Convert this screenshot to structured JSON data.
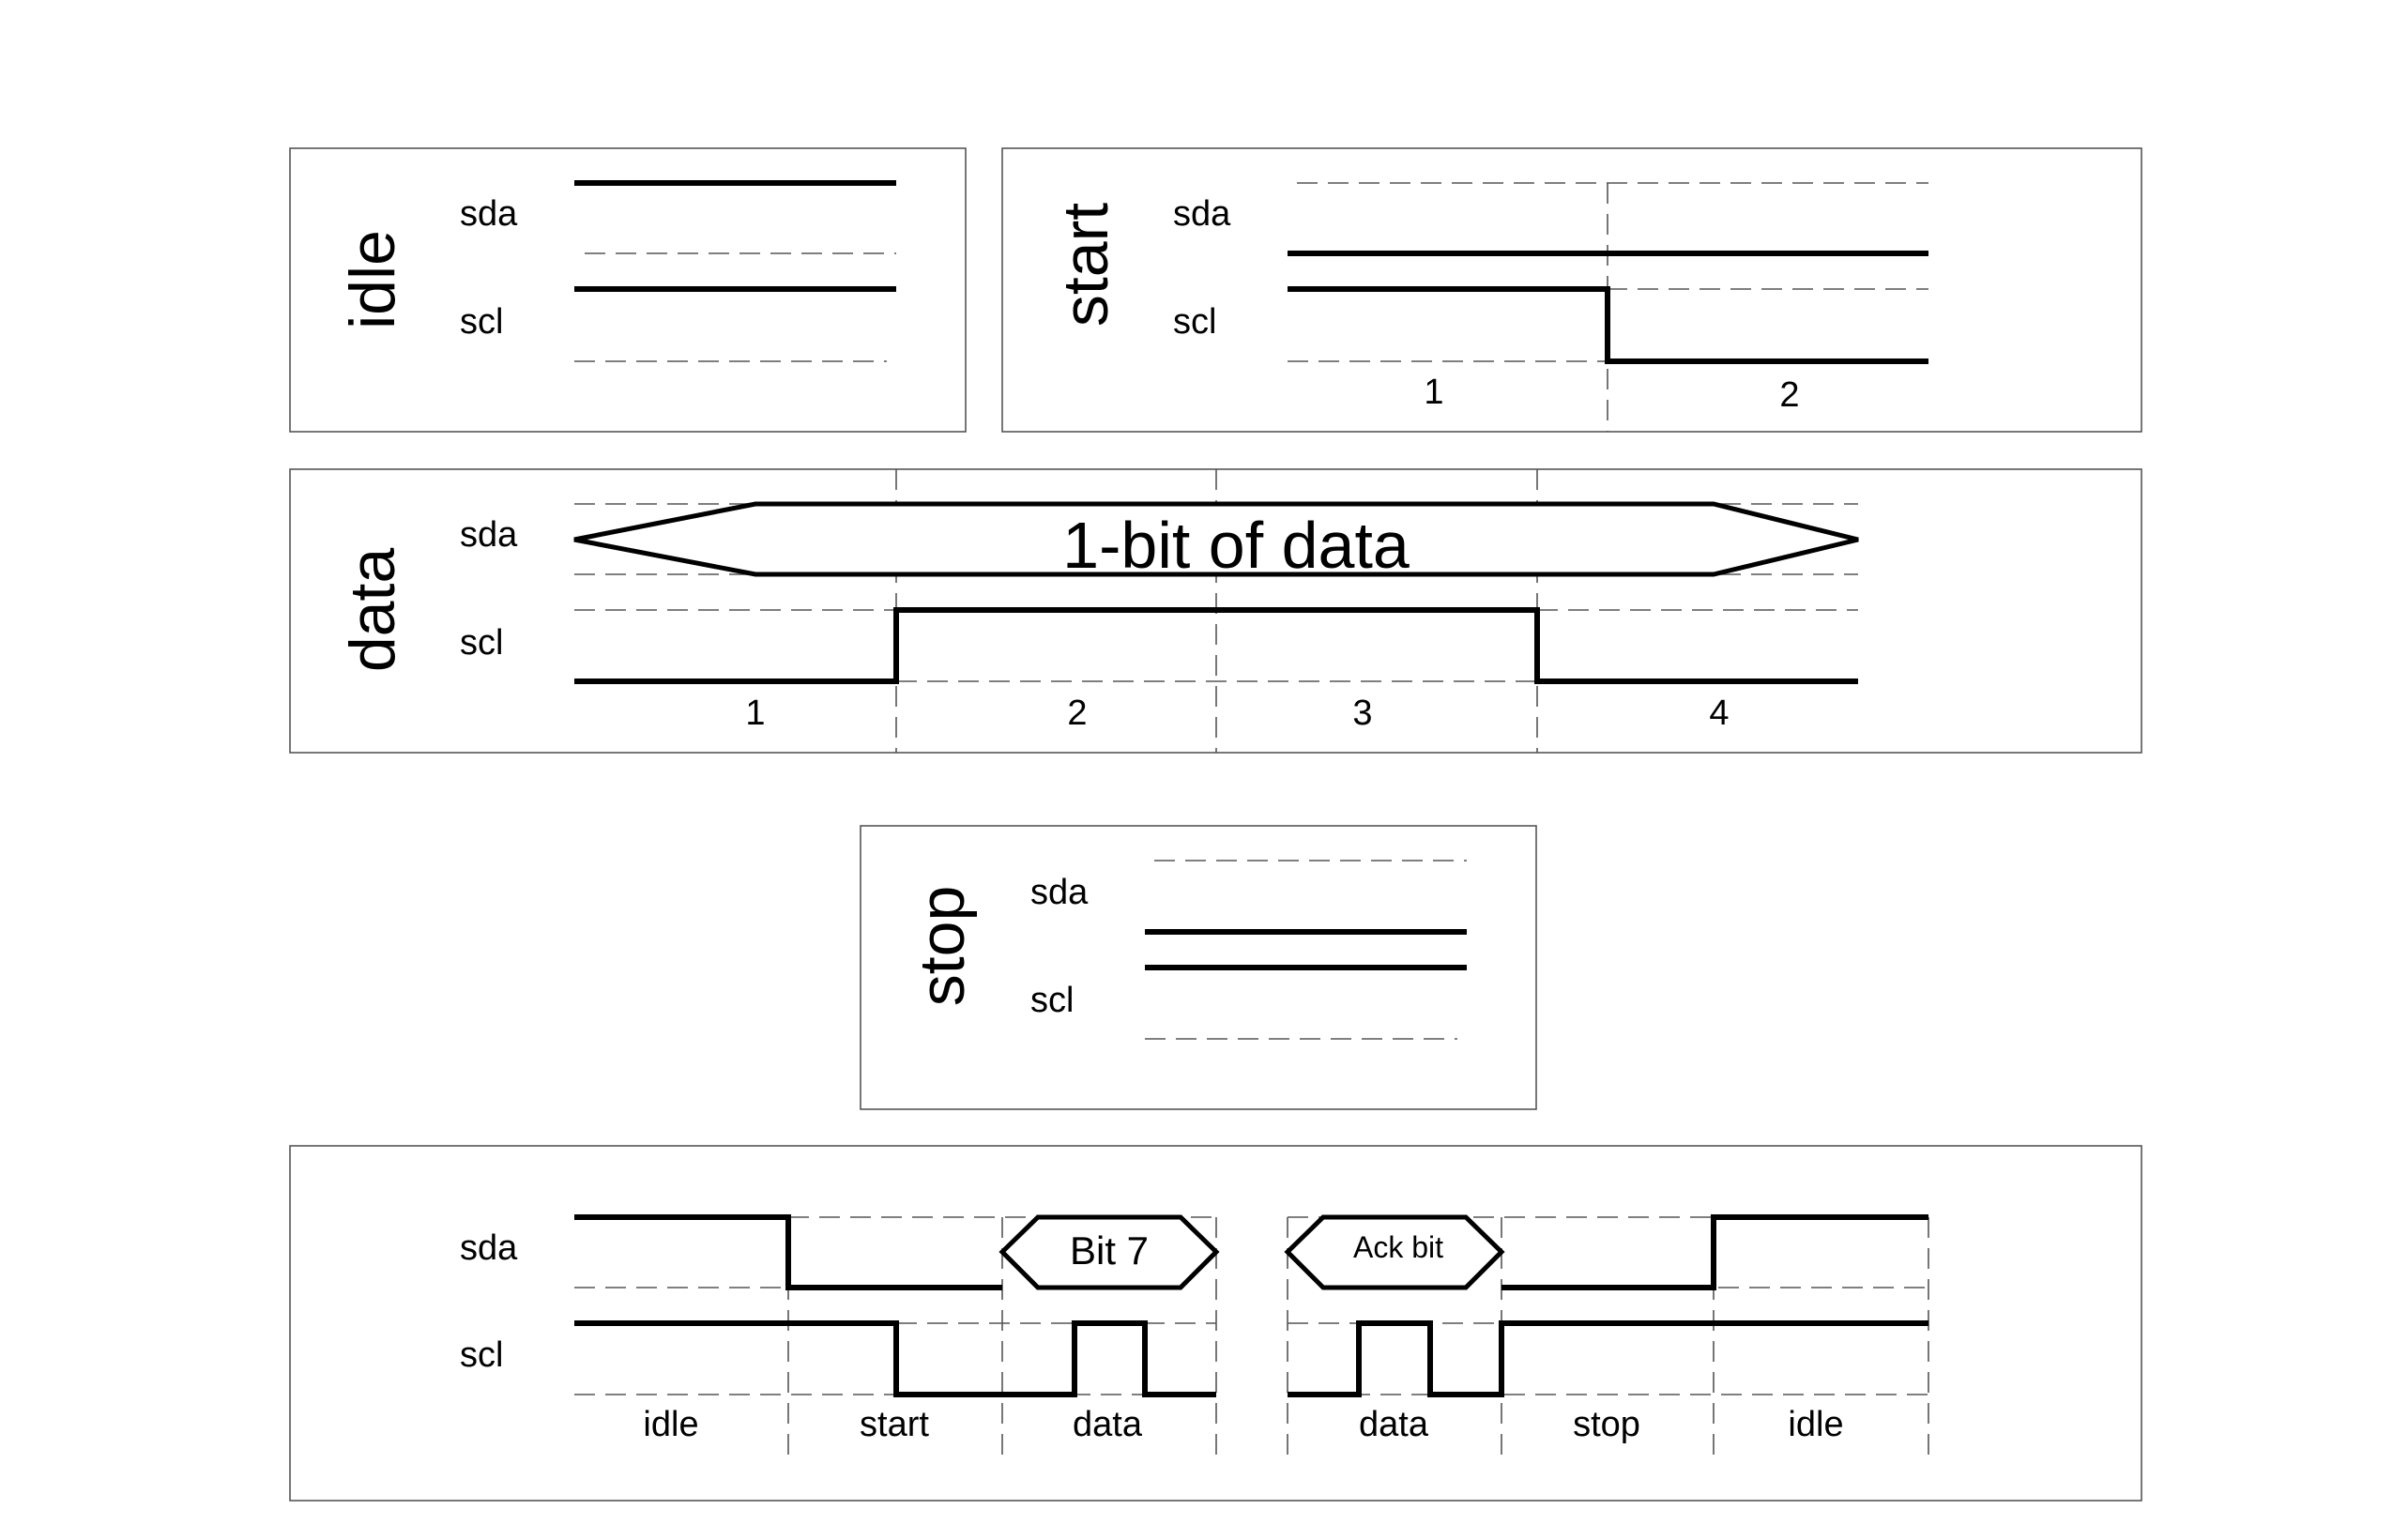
{
  "idle_panel": {
    "title": "idle",
    "sda_label": "sda",
    "scl_label": "scl"
  },
  "start_panel": {
    "title": "start",
    "sda_label": "sda",
    "scl_label": "scl",
    "phases": [
      "1",
      "2"
    ]
  },
  "data_panel": {
    "title": "data",
    "sda_label": "sda",
    "scl_label": "scl",
    "bus_label": "1-bit of data",
    "phases": [
      "1",
      "2",
      "3",
      "4"
    ]
  },
  "stop_panel": {
    "title": "stop",
    "sda_label": "sda",
    "scl_label": "scl"
  },
  "sequence_panel": {
    "sda_label": "sda",
    "scl_label": "scl",
    "bit7_label": "Bit 7",
    "ack_label": "Ack bit",
    "phases": [
      "idle",
      "start",
      "data",
      "data",
      "stop",
      "idle"
    ]
  }
}
